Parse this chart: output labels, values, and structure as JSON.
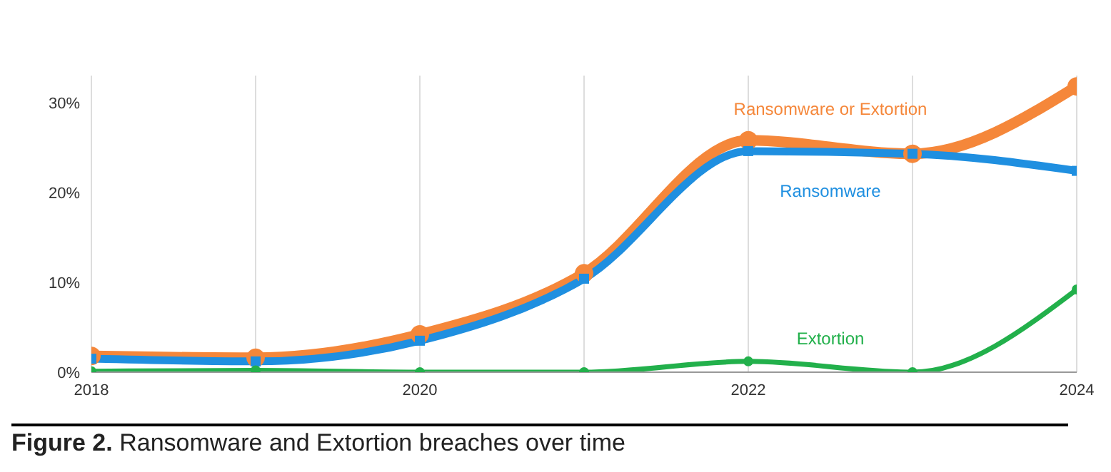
{
  "chart_data": {
    "type": "line",
    "title": "Figure 2. Ransomware and Extortion breaches over time",
    "x": [
      2018,
      2019,
      2020,
      2021,
      2022,
      2023,
      2024
    ],
    "series": [
      {
        "name": "Ransomware or Extortion",
        "color": "#f5873a",
        "marker": "circle",
        "values": [
          1.8,
          1.6,
          4.2,
          11,
          25.8,
          24.3,
          31.8
        ]
      },
      {
        "name": "Ransomware",
        "color": "#1f8fe0",
        "marker": "square",
        "values": [
          1.5,
          1.2,
          3.5,
          10.4,
          24.6,
          24.3,
          22.4
        ]
      },
      {
        "name": "Extortion",
        "color": "#22b04b",
        "marker": "circle",
        "values": [
          0.1,
          0.2,
          0,
          0,
          1.2,
          0,
          9.2
        ]
      }
    ],
    "xlim": [
      2018,
      2024
    ],
    "xticks": [
      2018,
      {
        "value": 2019,
        "label": null
      },
      2020,
      {
        "value": 2021,
        "label": null
      },
      2022,
      {
        "value": 2023,
        "label": null
      },
      2024
    ],
    "ylim": [
      0,
      33
    ],
    "yticks": [
      {
        "value": 0,
        "label": "0%"
      },
      {
        "value": 10,
        "label": "10%"
      },
      {
        "value": 20,
        "label": "20%"
      },
      {
        "value": 30,
        "label": "30%"
      }
    ],
    "grid": "x",
    "legend": false
  }
}
